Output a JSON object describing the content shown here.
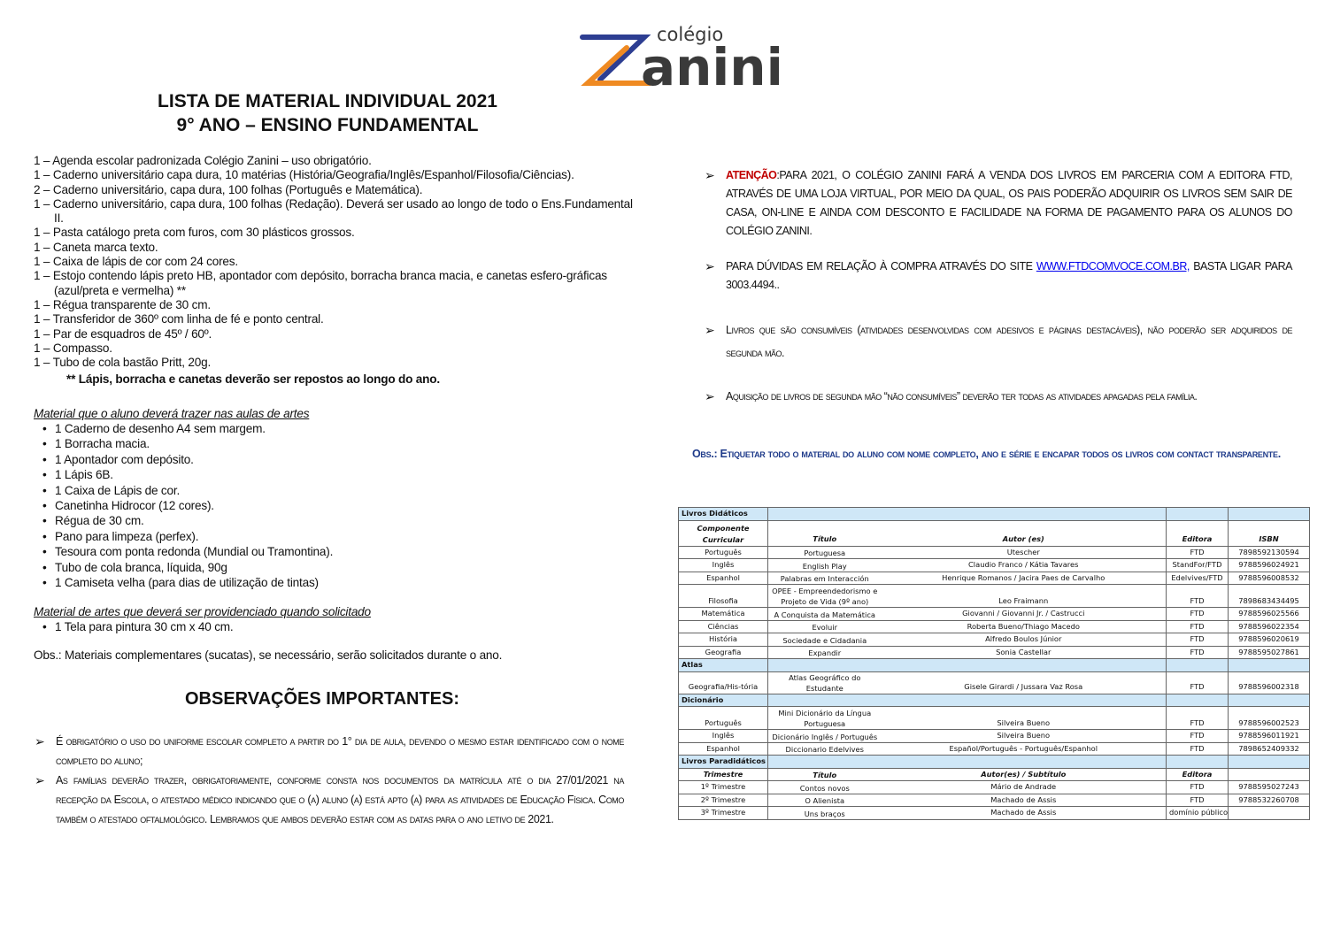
{
  "logo": {
    "small": "colégio",
    "big": "anini",
    "colors": {
      "blue": "#2d3e92",
      "orange": "#ef8a22",
      "gray": "#3a3a3a"
    }
  },
  "title1": "LISTA DE MATERIAL INDIVIDUAL 2021",
  "title2": "9° ANO – ENSINO FUNDAMENTAL",
  "items": [
    "1 – Agenda escolar padronizada Colégio Zanini – uso obrigatório.",
    "1 – Caderno universitário capa dura, 10 matérias (História/Geografia/Inglês/Espanhol/Filosofia/Ciências).",
    "2 – Caderno universitário, capa dura, 100 folhas (Português e Matemática).",
    "1 – Caderno universitário, capa dura, 100 folhas (Redação). Deverá ser usado ao longo de todo o Ens.Fundamental II.",
    "1 – Pasta catálogo preta com furos, com 30 plásticos grossos.",
    "1 – Caneta marca texto.",
    "1 – Caixa de lápis de cor com 24 cores.",
    "1 – Estojo contendo lápis preto HB, apontador com depósito, borracha branca macia, e canetas esfero-gráficas (azul/preta e vermelha) **",
    "1 – Régua transparente de 30 cm.",
    "1 – Transferidor de 360º com linha de fé e ponto central.",
    "1  – Par de esquadros de 45º / 60º.",
    "1 – Compasso.",
    "1 – Tubo de cola bastão Pritt, 20g."
  ],
  "note": "** Lápis, borracha e canetas deverão ser repostos ao longo do ano.",
  "arts_title": "Material que o aluno deverá trazer nas aulas de artes",
  "arts": [
    "1 Caderno de desenho A4 sem margem.",
    "1 Borracha macia.",
    "1 Apontador com depósito.",
    "1 Lápis 6B.",
    "1 Caixa de Lápis de cor.",
    "Canetinha Hidrocor (12 cores).",
    "Régua de 30 cm.",
    "Pano para limpeza (perfex).",
    "Tesoura com ponta redonda (Mundial ou Tramontina).",
    "Tubo de cola branca, líquida, 90g",
    "1 Camiseta velha (para dias de utilização de tintas)"
  ],
  "arts2_title": "Material de artes que deverá ser providenciado quando solicitado",
  "arts2": [
    "1 Tela para pintura 30 cm x 40 cm."
  ],
  "obs_sucatas": "Obs.: Materiais complementares (sucatas), se necessário, serão solicitados durante o ano.",
  "obs_heading": "OBSERVAÇÕES IMPORTANTES:",
  "obs_left": [
    "É obrigatório o uso do uniforme escolar completo a partir do 1° dia de aula, devendo o mesmo estar identificado com o nome completo do aluno;",
    "As famílias deverão trazer, obrigatoriamente, conforme consta nos documentos da matrícula até o dia 27/01/2021 na recepção da Escola, o atestado médico indicando que o (a) aluno (a) está apto (a) para as atividades de Educação Física. Como também o atestado oftalmológico. Lembramos que ambos deverão estar com as datas para o ano letivo de 2021."
  ],
  "right": {
    "atencao_label": "ATENÇÃO",
    "atencao_text": ":PARA 2021, O COLÉGIO ZANINI FARÁ A VENDA DOS LIVROS EM PARCERIA COM A EDITORA FTD, ATRAVÉS DE UMA LOJA  VIRTUAL, POR MEIO DA QUAL, OS PAIS PODERÃO ADQUIRIR OS LIVROS SEM SAIR DE CASA, ON-LINE E AINDA COM DESCONTO E FACILIDADE NA FORMA DE PAGAMENTO PARA OS ALUNOS DO COLÉGIO ZANINI.",
    "duvidas_pre": "PARA DÚVIDAS EM RELAÇÃO À COMPRA ATRAVÉS DO SITE ",
    "duvidas_link": "WWW.FTDCOMVOCE.COM.BR,",
    "duvidas_post": " BASTA LIGAR PARA 3003.4494..",
    "consumiveis": "Livros que são consumíveis (atividades desenvolvidas com adesivos e páginas destacáveis), não poderão ser adquiridos de segunda mão.",
    "aquisicao": "Aquisição de livros de segunda mão “não consumíveis” deverão ter todas as atividades apagadas pela família.",
    "obs": "Obs.: Etiquetar todo o material do aluno com nome completo, ano e série e encapar todos os livros com contact transparente."
  },
  "table": {
    "section1": "Livros Didáticos",
    "header1": [
      "Componente Curricular",
      "Título",
      "Autor (es)",
      "Editora",
      "ISBN"
    ],
    "rows1": [
      [
        "Português",
        "Portuguesa",
        "Utescher",
        "FTD",
        "7898592130594"
      ],
      [
        "Inglês",
        "English Play",
        "Claudio Franco / Kátia Tavares",
        "StandFor/FTD",
        "9788596024921"
      ],
      [
        "Espanhol",
        "Palabras em Interacción",
        "Henrique Romanos / Jacira Paes de Carvalho",
        "Edelvives/FTD",
        "9788596008532"
      ],
      [
        "Filosofia",
        "OPEE - Empreendedorismo e Projeto de Vida (9º ano)",
        "Leo Fraimann",
        "FTD",
        "7898683434495"
      ],
      [
        "Matemática",
        "A Conquista da Matemática",
        "Giovanni / Giovanni Jr. / Castrucci",
        "FTD",
        "9788596025566"
      ],
      [
        "Ciências",
        "Evoluir",
        "Roberta Bueno/Thiago Macedo",
        "FTD",
        "9788596022354"
      ],
      [
        "História",
        "Sociedade e Cidadania",
        "Alfredo Boulos Júnior",
        "FTD",
        "9788596020619"
      ],
      [
        "Geografia",
        "Expandir",
        "Sonia Castellar",
        "FTD",
        "9788595027861"
      ]
    ],
    "section2": "Atlas",
    "rows2": [
      [
        "Geografia/His-tória",
        "Atlas Geográfico do Estudante",
        "Gisele Girardi / Jussara Vaz Rosa",
        "FTD",
        "9788596002318"
      ]
    ],
    "section3": "Dicionário",
    "rows3": [
      [
        "Português",
        "Mini Dicionário da Língua Portuguesa",
        "Silveira Bueno",
        "FTD",
        "9788596002523"
      ],
      [
        "Inglês",
        "Dicionário Inglês / Português",
        "Silveira Bueno",
        "FTD",
        "9788596011921"
      ],
      [
        "Espanhol",
        "Diccionario Edelvives",
        "Español/Português - Português/Espanhol",
        "FTD",
        "7898652409332"
      ]
    ],
    "section4": "Livros Paradidáticos",
    "header4": [
      "Trimestre",
      "Título",
      "Autor(es) / Subtítulo",
      "Editora",
      ""
    ],
    "rows4": [
      [
        "1º Trimestre",
        "Contos novos",
        "Mário de Andrade",
        "FTD",
        "9788595027243"
      ],
      [
        "2º Trimestre",
        "O Alienista",
        "Machado de Assis",
        "FTD",
        "9788532260708"
      ],
      [
        "3º Trimestre",
        "Uns braços",
        "Machado de Assis",
        "domínio público",
        ""
      ]
    ]
  }
}
